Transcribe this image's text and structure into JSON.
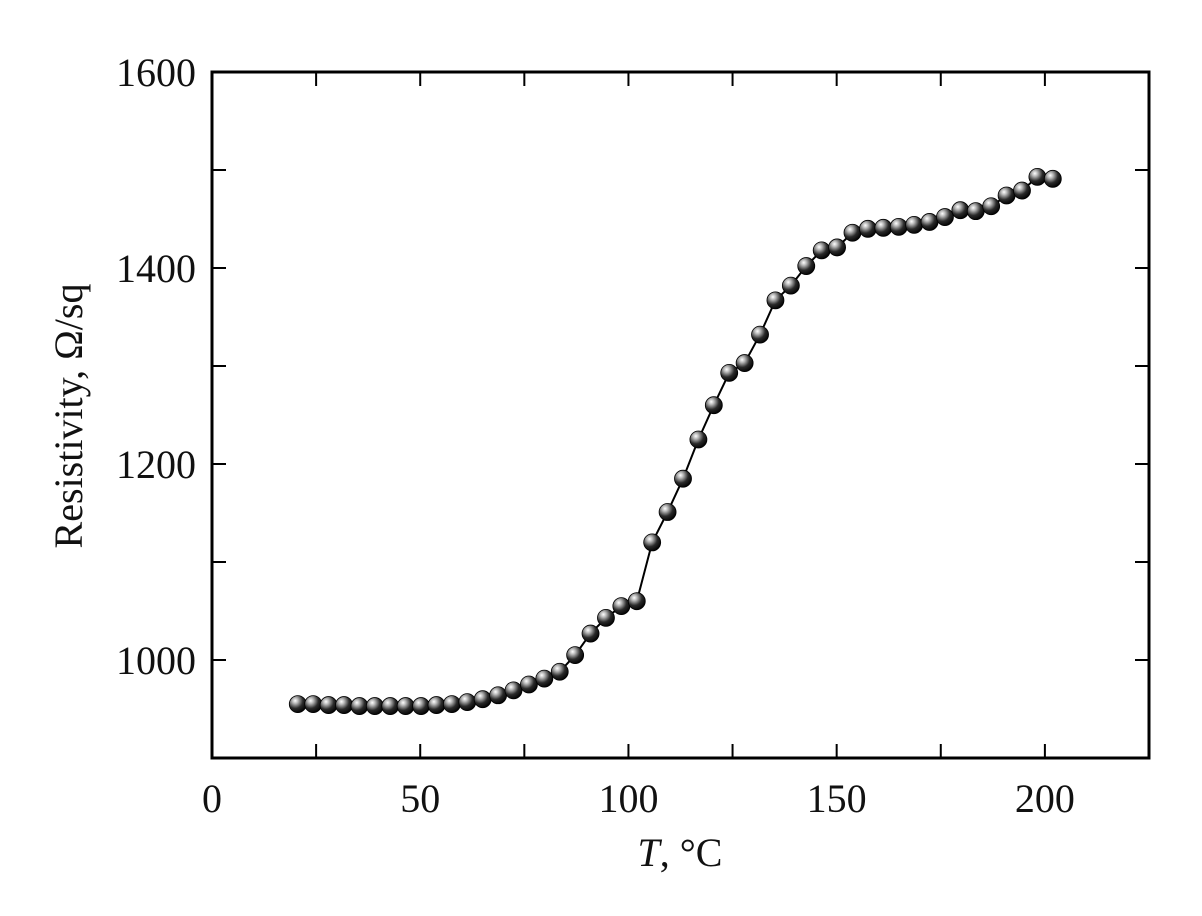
{
  "chart_data": {
    "type": "scatter",
    "xlabel_italic": "T",
    "xlabel_rest": ", °C",
    "ylabel": "Resistivity, Ω/sq",
    "xlim": [
      0,
      225
    ],
    "ylim": [
      900,
      1600
    ],
    "xticks": [
      0,
      50,
      100,
      150,
      200
    ],
    "yticks": [
      1000,
      1200,
      1400,
      1600
    ],
    "x_minor_ticks": [
      25,
      75,
      125,
      175,
      225
    ],
    "y_minor_ticks": [
      1100,
      1300,
      1500
    ],
    "grid": false,
    "marker": "sphere",
    "connected": true,
    "series": [
      {
        "x": [
          20.6,
          24.3,
          28.0,
          31.7,
          35.4,
          39.1,
          42.8,
          46.5,
          50.2,
          53.9,
          57.6,
          61.3,
          65.0,
          68.7,
          72.4,
          76.1,
          79.8,
          83.5,
          87.2,
          90.9,
          94.6,
          98.3,
          102.0,
          105.7,
          109.4,
          113.1,
          116.8,
          120.5,
          124.2,
          127.9,
          131.6,
          135.3,
          139.0,
          142.7,
          146.4,
          150.1,
          153.8,
          157.5,
          161.2,
          164.9,
          168.6,
          172.3,
          176.0,
          179.7,
          183.4,
          187.1,
          190.8,
          194.5,
          198.2,
          201.9
        ],
        "y": [
          955,
          955,
          954,
          954,
          953,
          953,
          953,
          953,
          953,
          954,
          955,
          957,
          960,
          964,
          969,
          975,
          981,
          988,
          1005,
          1027,
          1043,
          1055,
          1060,
          1120,
          1151,
          1185,
          1225,
          1260,
          1293,
          1303,
          1332,
          1367,
          1382,
          1402,
          1418,
          1421,
          1436,
          1440,
          1441,
          1442,
          1444,
          1447,
          1452,
          1459,
          1458,
          1463,
          1474,
          1479,
          1493,
          1491
        ]
      }
    ]
  }
}
